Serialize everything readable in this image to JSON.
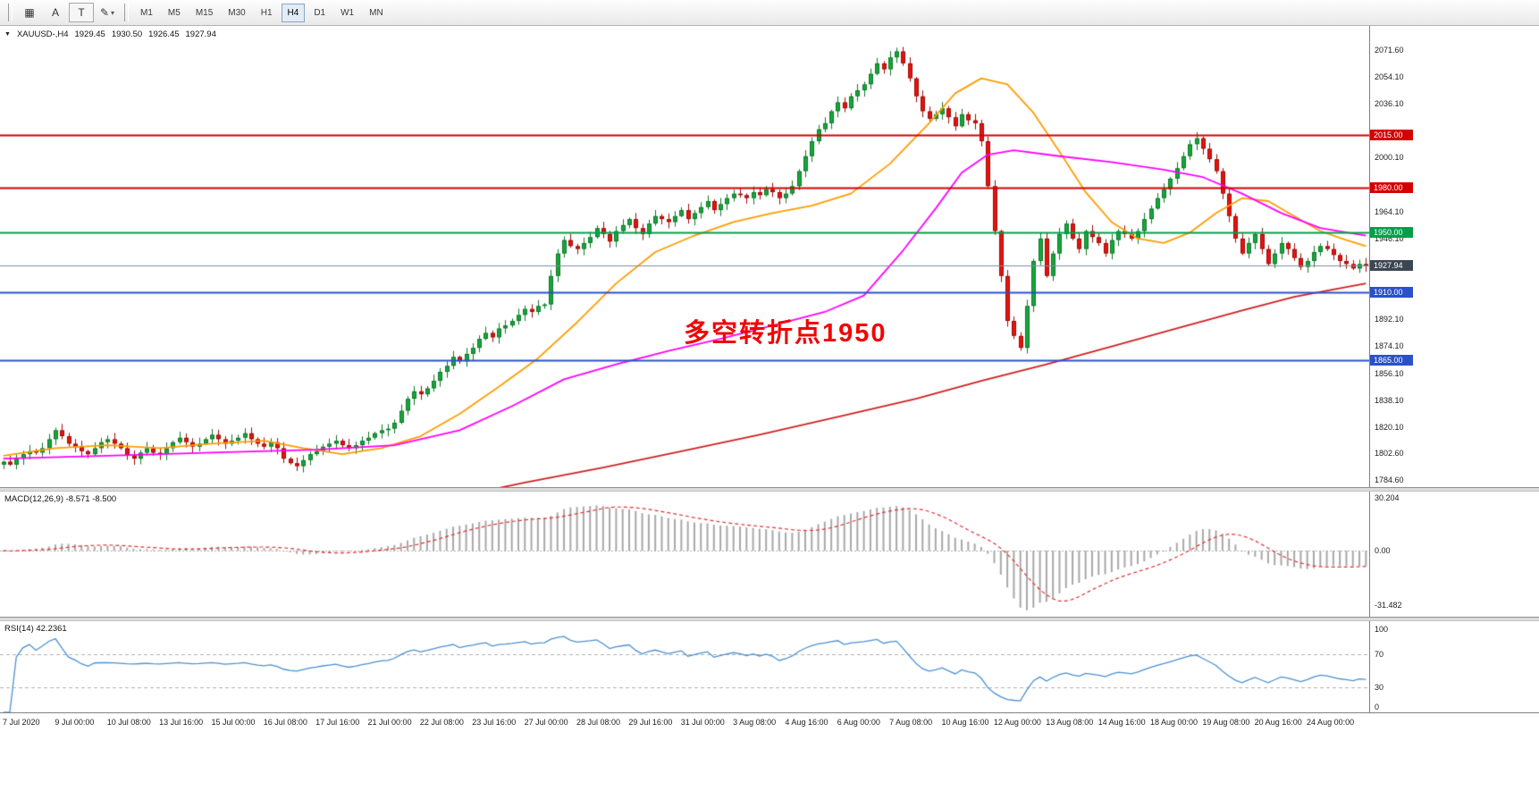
{
  "toolbar": {
    "tool_buttons": [
      {
        "name": "chart-tool-button",
        "glyph": "▦",
        "boxed": false,
        "dropdown": false
      },
      {
        "name": "text-annotation-button",
        "glyph": "A",
        "boxed": false,
        "dropdown": false
      },
      {
        "name": "text-box-button",
        "glyph": "T",
        "boxed": true,
        "dropdown": false
      },
      {
        "name": "drawing-tools-button",
        "glyph": "✎",
        "boxed": false,
        "dropdown": true
      }
    ],
    "timeframes": [
      "M1",
      "M5",
      "M15",
      "M30",
      "H1",
      "H4",
      "D1",
      "W1",
      "MN"
    ],
    "active_timeframe": "H4"
  },
  "chart": {
    "collapse_glyph": "▼",
    "symbol": "XAUUSD-,H4",
    "ohlc": {
      "open": "1929.45",
      "high": "1930.50",
      "low": "1926.45",
      "close": "1927.94"
    },
    "annotation": {
      "text": "多空转折点1950",
      "color": "#f00505"
    },
    "y_range": [
      1780,
      2088
    ],
    "y_ticks": [
      {
        "label": "2071.60",
        "price": 2071.6
      },
      {
        "label": "2054.10",
        "price": 2054.1
      },
      {
        "label": "2036.10",
        "price": 2036.1
      },
      {
        "label": "2000.10",
        "price": 2000.1
      },
      {
        "label": "1964.10",
        "price": 1964.1
      },
      {
        "label": "1946.10",
        "price": 1946.1
      },
      {
        "label": "1892.10",
        "price": 1892.1
      },
      {
        "label": "1874.10",
        "price": 1874.1
      },
      {
        "label": "1856.10",
        "price": 1856.1
      },
      {
        "label": "1838.10",
        "price": 1838.1
      },
      {
        "label": "1820.10",
        "price": 1820.1
      },
      {
        "label": "1802.60",
        "price": 1802.6
      },
      {
        "label": "1784.60",
        "price": 1784.6
      }
    ],
    "levels": [
      {
        "label": "2015.00",
        "price": 2015.0,
        "color": "#d40000",
        "kind": "resistance"
      },
      {
        "label": "1980.00",
        "price": 1980.0,
        "color": "#d40000",
        "kind": "resistance"
      },
      {
        "label": "1950.00",
        "price": 1950.0,
        "color": "#00a04a",
        "kind": "pivot"
      },
      {
        "label": "1927.94",
        "price": 1927.94,
        "color": "#3c4652",
        "kind": "current"
      },
      {
        "label": "1910.00",
        "price": 1910.0,
        "color": "#2b50c8",
        "kind": "support"
      },
      {
        "label": "1865.00",
        "price": 1865.0,
        "color": "#2b50c8",
        "kind": "support"
      }
    ],
    "colors": {
      "up": "#17a53c",
      "up_border": "#0b7a26",
      "down": "#e8120e",
      "down_border": "#9e0b07",
      "current_line": "#7c8ea0",
      "macd_hist": "#a8a8a8",
      "macd_signal": "#e03030",
      "rsi_line": "#4a90d2",
      "guide": "#b0b0b0"
    },
    "candles_close": [
      1797,
      1795,
      1799,
      1802,
      1804,
      1803,
      1806,
      1812,
      1818,
      1814,
      1809,
      1807,
      1804,
      1802,
      1806,
      1810,
      1812,
      1809,
      1806,
      1801,
      1799,
      1803,
      1806,
      1803,
      1802,
      1806,
      1810,
      1813,
      1810,
      1807,
      1809,
      1812,
      1815,
      1812,
      1809,
      1811,
      1813,
      1816,
      1812,
      1809,
      1807,
      1810,
      1806,
      1799,
      1796,
      1794,
      1798,
      1802,
      1804,
      1807,
      1809,
      1811,
      1808,
      1806,
      1808,
      1811,
      1813,
      1816,
      1818,
      1819,
      1823,
      1831,
      1839,
      1844,
      1842,
      1846,
      1851,
      1857,
      1861,
      1867,
      1864,
      1869,
      1873,
      1879,
      1883,
      1880,
      1886,
      1888,
      1891,
      1895,
      1899,
      1897,
      1901,
      1902,
      1921,
      1936,
      1945,
      1941,
      1939,
      1943,
      1947,
      1953,
      1949,
      1944,
      1951,
      1955,
      1959,
      1953,
      1949,
      1956,
      1961,
      1959,
      1957,
      1961,
      1965,
      1959,
      1963,
      1967,
      1971,
      1965,
      1969,
      1973,
      1976,
      1975,
      1973,
      1977,
      1975,
      1979,
      1977,
      1973,
      1976,
      1981,
      1991,
      2001,
      2011,
      2019,
      2023,
      2031,
      2037,
      2033,
      2041,
      2045,
      2049,
      2056,
      2063,
      2059,
      2067,
      2071,
      2063,
      2053,
      2041,
      2031,
      2026,
      2029,
      2033,
      2027,
      2021,
      2029,
      2025,
      2023,
      2011,
      1981,
      1951,
      1921,
      1891,
      1881,
      1873,
      1901,
      1931,
      1946,
      1921,
      1936,
      1949,
      1956,
      1946,
      1939,
      1951,
      1947,
      1943,
      1936,
      1945,
      1951,
      1949,
      1946,
      1951,
      1959,
      1966,
      1973,
      1979,
      1986,
      1993,
      2001,
      2009,
      2013,
      2006,
      1999,
      1991,
      1976,
      1961,
      1946,
      1936,
      1943,
      1949,
      1939,
      1929,
      1936,
      1943,
      1939,
      1933,
      1927,
      1931,
      1937,
      1941,
      1939,
      1935,
      1931,
      1929,
      1926,
      1929,
      1927.94
    ],
    "moving_averages": [
      {
        "name": "ma-fast",
        "color": "#ff9c00",
        "points": [
          [
            0,
            1801
          ],
          [
            8,
            1806
          ],
          [
            16,
            1808
          ],
          [
            24,
            1806
          ],
          [
            32,
            1809
          ],
          [
            40,
            1811
          ],
          [
            46,
            1806
          ],
          [
            52,
            1802
          ],
          [
            58,
            1806
          ],
          [
            64,
            1814
          ],
          [
            70,
            1829
          ],
          [
            76,
            1847
          ],
          [
            82,
            1866
          ],
          [
            88,
            1890
          ],
          [
            94,
            1916
          ],
          [
            100,
            1937
          ],
          [
            106,
            1948
          ],
          [
            112,
            1957
          ],
          [
            118,
            1963
          ],
          [
            124,
            1968
          ],
          [
            130,
            1976
          ],
          [
            136,
            1996
          ],
          [
            142,
            2023
          ],
          [
            146,
            2043
          ],
          [
            150,
            2053
          ],
          [
            154,
            2049
          ],
          [
            158,
            2030
          ],
          [
            162,
            2004
          ],
          [
            166,
            1977
          ],
          [
            170,
            1957
          ],
          [
            174,
            1946
          ],
          [
            178,
            1943
          ],
          [
            182,
            1950
          ],
          [
            186,
            1963
          ],
          [
            190,
            1973
          ],
          [
            194,
            1971
          ],
          [
            198,
            1961
          ],
          [
            202,
            1951
          ],
          [
            206,
            1945
          ],
          [
            209,
            1941
          ]
        ]
      },
      {
        "name": "ma-mid",
        "color": "#ff00ff",
        "points": [
          [
            0,
            1799
          ],
          [
            16,
            1801
          ],
          [
            32,
            1803
          ],
          [
            48,
            1805
          ],
          [
            60,
            1808
          ],
          [
            70,
            1818
          ],
          [
            78,
            1834
          ],
          [
            86,
            1852
          ],
          [
            94,
            1862
          ],
          [
            102,
            1871
          ],
          [
            110,
            1879
          ],
          [
            118,
            1888
          ],
          [
            126,
            1897
          ],
          [
            132,
            1908
          ],
          [
            138,
            1938
          ],
          [
            143,
            1966
          ],
          [
            147,
            1990
          ],
          [
            151,
            2002
          ],
          [
            155,
            2005
          ],
          [
            162,
            2001
          ],
          [
            170,
            1997
          ],
          [
            178,
            1992
          ],
          [
            184,
            1987
          ],
          [
            190,
            1976
          ],
          [
            196,
            1963
          ],
          [
            202,
            1953
          ],
          [
            209,
            1948
          ]
        ]
      },
      {
        "name": "ma-slow",
        "color": "#cf2020",
        "points": [
          [
            70,
            1774
          ],
          [
            80,
            1783
          ],
          [
            92,
            1793
          ],
          [
            104,
            1804
          ],
          [
            116,
            1815
          ],
          [
            128,
            1827
          ],
          [
            140,
            1839
          ],
          [
            150,
            1851
          ],
          [
            160,
            1862
          ],
          [
            170,
            1874
          ],
          [
            180,
            1886
          ],
          [
            190,
            1898
          ],
          [
            198,
            1907
          ],
          [
            204,
            1912
          ],
          [
            209,
            1916
          ]
        ]
      }
    ]
  },
  "macd": {
    "label": "MACD(12,26,9) -8.571 -8.500",
    "range": [
      -38,
      34
    ],
    "axis": [
      {
        "label": "30.204",
        "value": 30.204
      },
      {
        "label": "0.00",
        "value": 0
      },
      {
        "label": "-31.482",
        "value": -31.482
      }
    ]
  },
  "rsi": {
    "label": "RSI(14) 42.2361",
    "period": 14,
    "range": [
      0,
      110
    ],
    "guide_levels": [
      70,
      30
    ],
    "axis": [
      {
        "label": "100",
        "value": 100
      },
      {
        "label": "70",
        "value": 70
      },
      {
        "label": "30",
        "value": 30
      },
      {
        "label": "0",
        "value": 0
      }
    ]
  },
  "time_axis": {
    "label_every_n_candles": 8,
    "labels": [
      "7 Jul 2020",
      "9 Jul 00:00",
      "10 Jul 08:00",
      "13 Jul 16:00",
      "15 Jul 00:00",
      "16 Jul 08:00",
      "17 Jul 16:00",
      "21 Jul 00:00",
      "22 Jul 08:00",
      "23 Jul 16:00",
      "27 Jul 00:00",
      "28 Jul 08:00",
      "29 Jul 16:00",
      "31 Jul 00:00",
      "3 Aug 08:00",
      "4 Aug 16:00",
      "6 Aug 00:00",
      "7 Aug 08:00",
      "10 Aug 16:00",
      "12 Aug 00:00",
      "13 Aug 08:00",
      "14 Aug 16:00",
      "18 Aug 00:00",
      "19 Aug 08:00",
      "20 Aug 16:00",
      "24 Aug 00:00"
    ]
  }
}
